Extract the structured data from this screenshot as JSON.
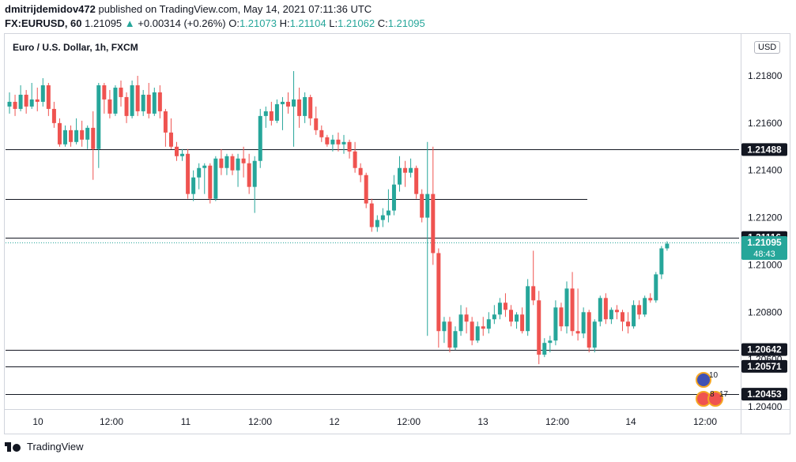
{
  "header": {
    "publisher": "dmitrijdemidov472",
    "published_text": "published on TradingView.com, May 14, 2021 07:11:36 UTC",
    "symbol": "FX:EURUSD, 60",
    "last": "1.21095",
    "change_icon": "up-triangle-icon",
    "change": "+0.00314 (+0.26%)",
    "open_label": "O:",
    "open": "1.21073",
    "high_label": "H:",
    "high": "1.21104",
    "low_label": "L:",
    "low": "1.21062",
    "close_label": "C:",
    "close": "1.21095"
  },
  "chart_title": "Euro / U.S. Dollar, 1h, FXCM",
  "currency_button": "USD",
  "footer": {
    "brand": "TradingView"
  },
  "colors": {
    "up": "#26a69a",
    "down": "#ef5350",
    "line": "#131722",
    "tag_bg": "#131722",
    "price_tag_bg": "#26a69a"
  },
  "chart_data": {
    "type": "candlestick",
    "title": "Euro / U.S. Dollar, 1h, FXCM",
    "x_tick_labels": [
      "10",
      "12:00",
      "11",
      "12:00",
      "12",
      "12:00",
      "13",
      "12:00",
      "14",
      "12:00"
    ],
    "y_tick_labels": [
      "1.21800",
      "1.21600",
      "1.21400",
      "1.21200",
      "1.21000",
      "1.20800",
      "1.20600",
      "1.20400"
    ],
    "ylim": [
      1.2035,
      1.2205
    ],
    "horizontal_levels": [
      {
        "value": 1.21488,
        "label": "1.21488"
      },
      {
        "value": 1.21116,
        "label": "1.21116"
      },
      {
        "value": 1.20642,
        "label": "1.20642"
      },
      {
        "value": 1.20571,
        "label": "1.20571"
      },
      {
        "value": 1.20453,
        "label": "1.20453"
      }
    ],
    "unlabeled_level": {
      "value": 1.2128
    },
    "current_price": {
      "value": 1.21095,
      "label": "1.21095",
      "countdown": "48:43"
    },
    "event_badges": [
      {
        "label": "10"
      },
      {
        "label": "8"
      },
      {
        "label": "17"
      }
    ],
    "grid": false,
    "candles": [
      {
        "o": 1.2167,
        "h": 1.2173,
        "l": 1.2164,
        "c": 1.2169
      },
      {
        "o": 1.2169,
        "h": 1.2172,
        "l": 1.2163,
        "c": 1.2166
      },
      {
        "o": 1.2166,
        "h": 1.2176,
        "l": 1.2165,
        "c": 1.2172
      },
      {
        "o": 1.2172,
        "h": 1.2174,
        "l": 1.2164,
        "c": 1.2167
      },
      {
        "o": 1.2167,
        "h": 1.2177,
        "l": 1.2166,
        "c": 1.217
      },
      {
        "o": 1.217,
        "h": 1.2175,
        "l": 1.2165,
        "c": 1.2169
      },
      {
        "o": 1.2169,
        "h": 1.2179,
        "l": 1.2167,
        "c": 1.2176
      },
      {
        "o": 1.2176,
        "h": 1.2177,
        "l": 1.2163,
        "c": 1.2166
      },
      {
        "o": 1.2166,
        "h": 1.2169,
        "l": 1.2158,
        "c": 1.216
      },
      {
        "o": 1.216,
        "h": 1.2162,
        "l": 1.215,
        "c": 1.2151
      },
      {
        "o": 1.2151,
        "h": 1.2159,
        "l": 1.215,
        "c": 1.2157
      },
      {
        "o": 1.2157,
        "h": 1.2159,
        "l": 1.215,
        "c": 1.2152
      },
      {
        "o": 1.2152,
        "h": 1.2162,
        "l": 1.2151,
        "c": 1.2157
      },
      {
        "o": 1.2157,
        "h": 1.2161,
        "l": 1.215,
        "c": 1.2153
      },
      {
        "o": 1.2153,
        "h": 1.2159,
        "l": 1.2149,
        "c": 1.2158
      },
      {
        "o": 1.2158,
        "h": 1.2165,
        "l": 1.2136,
        "c": 1.2149
      },
      {
        "o": 1.2149,
        "h": 1.2177,
        "l": 1.2141,
        "c": 1.2176
      },
      {
        "o": 1.2176,
        "h": 1.2177,
        "l": 1.2164,
        "c": 1.217
      },
      {
        "o": 1.217,
        "h": 1.2174,
        "l": 1.2162,
        "c": 1.2164
      },
      {
        "o": 1.2164,
        "h": 1.2176,
        "l": 1.2163,
        "c": 1.2175
      },
      {
        "o": 1.2175,
        "h": 1.2178,
        "l": 1.2167,
        "c": 1.2171
      },
      {
        "o": 1.2171,
        "h": 1.2173,
        "l": 1.216,
        "c": 1.2163
      },
      {
        "o": 1.2163,
        "h": 1.2178,
        "l": 1.2162,
        "c": 1.2176
      },
      {
        "o": 1.2176,
        "h": 1.218,
        "l": 1.2163,
        "c": 1.2165
      },
      {
        "o": 1.2165,
        "h": 1.2174,
        "l": 1.2163,
        "c": 1.2172
      },
      {
        "o": 1.2172,
        "h": 1.2177,
        "l": 1.2162,
        "c": 1.2164
      },
      {
        "o": 1.2164,
        "h": 1.2175,
        "l": 1.2163,
        "c": 1.2173
      },
      {
        "o": 1.2173,
        "h": 1.2176,
        "l": 1.2162,
        "c": 1.2165
      },
      {
        "o": 1.2165,
        "h": 1.2166,
        "l": 1.215,
        "c": 1.2156
      },
      {
        "o": 1.2156,
        "h": 1.2162,
        "l": 1.2149,
        "c": 1.215
      },
      {
        "o": 1.215,
        "h": 1.2152,
        "l": 1.2144,
        "c": 1.2146
      },
      {
        "o": 1.2146,
        "h": 1.2149,
        "l": 1.2144,
        "c": 1.2147
      },
      {
        "o": 1.2147,
        "h": 1.2149,
        "l": 1.2128,
        "c": 1.213
      },
      {
        "o": 1.213,
        "h": 1.214,
        "l": 1.2127,
        "c": 1.2137
      },
      {
        "o": 1.2137,
        "h": 1.2143,
        "l": 1.2132,
        "c": 1.2141
      },
      {
        "o": 1.2141,
        "h": 1.2143,
        "l": 1.213,
        "c": 1.2142
      },
      {
        "o": 1.2142,
        "h": 1.2143,
        "l": 1.2126,
        "c": 1.2128
      },
      {
        "o": 1.2128,
        "h": 1.2146,
        "l": 1.2127,
        "c": 1.2145
      },
      {
        "o": 1.2145,
        "h": 1.2149,
        "l": 1.2138,
        "c": 1.2141
      },
      {
        "o": 1.2141,
        "h": 1.2147,
        "l": 1.2138,
        "c": 1.2146
      },
      {
        "o": 1.2146,
        "h": 1.2147,
        "l": 1.2138,
        "c": 1.214
      },
      {
        "o": 1.214,
        "h": 1.2147,
        "l": 1.2133,
        "c": 1.2145
      },
      {
        "o": 1.2145,
        "h": 1.215,
        "l": 1.2137,
        "c": 1.2143
      },
      {
        "o": 1.2143,
        "h": 1.2147,
        "l": 1.213,
        "c": 1.2133
      },
      {
        "o": 1.2133,
        "h": 1.2146,
        "l": 1.2122,
        "c": 1.2144
      },
      {
        "o": 1.2144,
        "h": 1.2166,
        "l": 1.2141,
        "c": 1.2163
      },
      {
        "o": 1.2163,
        "h": 1.2167,
        "l": 1.2158,
        "c": 1.2165
      },
      {
        "o": 1.2165,
        "h": 1.2169,
        "l": 1.2159,
        "c": 1.2161
      },
      {
        "o": 1.2161,
        "h": 1.217,
        "l": 1.216,
        "c": 1.2168
      },
      {
        "o": 1.2168,
        "h": 1.2171,
        "l": 1.2157,
        "c": 1.2169
      },
      {
        "o": 1.2169,
        "h": 1.2173,
        "l": 1.2164,
        "c": 1.2167
      },
      {
        "o": 1.2167,
        "h": 1.2182,
        "l": 1.215,
        "c": 1.217
      },
      {
        "o": 1.217,
        "h": 1.2175,
        "l": 1.2158,
        "c": 1.2163
      },
      {
        "o": 1.2163,
        "h": 1.2173,
        "l": 1.216,
        "c": 1.2171
      },
      {
        "o": 1.2171,
        "h": 1.2172,
        "l": 1.2159,
        "c": 1.2162
      },
      {
        "o": 1.2162,
        "h": 1.2167,
        "l": 1.2155,
        "c": 1.2157
      },
      {
        "o": 1.2157,
        "h": 1.2159,
        "l": 1.2152,
        "c": 1.2154
      },
      {
        "o": 1.2154,
        "h": 1.2155,
        "l": 1.215,
        "c": 1.2151
      },
      {
        "o": 1.2151,
        "h": 1.2155,
        "l": 1.2148,
        "c": 1.2153
      },
      {
        "o": 1.2153,
        "h": 1.2156,
        "l": 1.2148,
        "c": 1.2151
      },
      {
        "o": 1.2151,
        "h": 1.2155,
        "l": 1.2147,
        "c": 1.2152
      },
      {
        "o": 1.2152,
        "h": 1.2153,
        "l": 1.2145,
        "c": 1.2148
      },
      {
        "o": 1.2148,
        "h": 1.2152,
        "l": 1.2139,
        "c": 1.2141
      },
      {
        "o": 1.2141,
        "h": 1.2143,
        "l": 1.2135,
        "c": 1.2138
      },
      {
        "o": 1.2138,
        "h": 1.2139,
        "l": 1.2124,
        "c": 1.2126
      },
      {
        "o": 1.2126,
        "h": 1.2128,
        "l": 1.2114,
        "c": 1.2116
      },
      {
        "o": 1.2116,
        "h": 1.2121,
        "l": 1.2114,
        "c": 1.2119
      },
      {
        "o": 1.2119,
        "h": 1.2124,
        "l": 1.2116,
        "c": 1.2121
      },
      {
        "o": 1.2121,
        "h": 1.2132,
        "l": 1.2118,
        "c": 1.2123
      },
      {
        "o": 1.2123,
        "h": 1.2138,
        "l": 1.2121,
        "c": 1.2134
      },
      {
        "o": 1.2134,
        "h": 1.2146,
        "l": 1.2131,
        "c": 1.2141
      },
      {
        "o": 1.2141,
        "h": 1.2144,
        "l": 1.2133,
        "c": 1.2139
      },
      {
        "o": 1.2139,
        "h": 1.2145,
        "l": 1.2137,
        "c": 1.2141
      },
      {
        "o": 1.2141,
        "h": 1.2142,
        "l": 1.2128,
        "c": 1.213
      },
      {
        "o": 1.213,
        "h": 1.2132,
        "l": 1.2118,
        "c": 1.212
      },
      {
        "o": 1.212,
        "h": 1.2152,
        "l": 1.207,
        "c": 1.213
      },
      {
        "o": 1.213,
        "h": 1.215,
        "l": 1.21,
        "c": 1.2105
      },
      {
        "o": 1.2105,
        "h": 1.2107,
        "l": 1.2065,
        "c": 1.2072
      },
      {
        "o": 1.2072,
        "h": 1.2078,
        "l": 1.2067,
        "c": 1.2076
      },
      {
        "o": 1.2076,
        "h": 1.2078,
        "l": 1.2063,
        "c": 1.2065
      },
      {
        "o": 1.2065,
        "h": 1.2074,
        "l": 1.2064,
        "c": 1.2072
      },
      {
        "o": 1.2072,
        "h": 1.2083,
        "l": 1.207,
        "c": 1.2079
      },
      {
        "o": 1.2079,
        "h": 1.2082,
        "l": 1.2071,
        "c": 1.2076
      },
      {
        "o": 1.2076,
        "h": 1.2078,
        "l": 1.2066,
        "c": 1.2068
      },
      {
        "o": 1.2068,
        "h": 1.2076,
        "l": 1.2067,
        "c": 1.2074
      },
      {
        "o": 1.2074,
        "h": 1.2078,
        "l": 1.207,
        "c": 1.2073
      },
      {
        "o": 1.2073,
        "h": 1.208,
        "l": 1.2071,
        "c": 1.2077
      },
      {
        "o": 1.2077,
        "h": 1.2083,
        "l": 1.2075,
        "c": 1.2079
      },
      {
        "o": 1.2079,
        "h": 1.2086,
        "l": 1.2077,
        "c": 1.2084
      },
      {
        "o": 1.2084,
        "h": 1.2088,
        "l": 1.2078,
        "c": 1.2081
      },
      {
        "o": 1.2081,
        "h": 1.2083,
        "l": 1.2074,
        "c": 1.2076
      },
      {
        "o": 1.2076,
        "h": 1.208,
        "l": 1.2073,
        "c": 1.2079
      },
      {
        "o": 1.2079,
        "h": 1.2082,
        "l": 1.2071,
        "c": 1.2072
      },
      {
        "o": 1.2072,
        "h": 1.2094,
        "l": 1.207,
        "c": 1.2091
      },
      {
        "o": 1.2091,
        "h": 1.2106,
        "l": 1.2083,
        "c": 1.2085
      },
      {
        "o": 1.2085,
        "h": 1.2089,
        "l": 1.2058,
        "c": 1.2062
      },
      {
        "o": 1.2062,
        "h": 1.2069,
        "l": 1.2061,
        "c": 1.2067
      },
      {
        "o": 1.2067,
        "h": 1.207,
        "l": 1.2063,
        "c": 1.2068
      },
      {
        "o": 1.2068,
        "h": 1.2085,
        "l": 1.2066,
        "c": 1.2082
      },
      {
        "o": 1.2082,
        "h": 1.2084,
        "l": 1.2072,
        "c": 1.2074
      },
      {
        "o": 1.2074,
        "h": 1.2093,
        "l": 1.2071,
        "c": 1.209
      },
      {
        "o": 1.209,
        "h": 1.2097,
        "l": 1.207,
        "c": 1.2072
      },
      {
        "o": 1.2072,
        "h": 1.209,
        "l": 1.2068,
        "c": 1.2071
      },
      {
        "o": 1.2071,
        "h": 1.2082,
        "l": 1.2069,
        "c": 1.208
      },
      {
        "o": 1.208,
        "h": 1.2081,
        "l": 1.2063,
        "c": 1.2065
      },
      {
        "o": 1.2065,
        "h": 1.2077,
        "l": 1.2063,
        "c": 1.2076
      },
      {
        "o": 1.2076,
        "h": 1.2087,
        "l": 1.2074,
        "c": 1.2086
      },
      {
        "o": 1.2086,
        "h": 1.2088,
        "l": 1.2075,
        "c": 1.2077
      },
      {
        "o": 1.2077,
        "h": 1.2082,
        "l": 1.2075,
        "c": 1.2081
      },
      {
        "o": 1.2081,
        "h": 1.2083,
        "l": 1.2077,
        "c": 1.208
      },
      {
        "o": 1.208,
        "h": 1.2081,
        "l": 1.2072,
        "c": 1.2076
      },
      {
        "o": 1.2076,
        "h": 1.208,
        "l": 1.2071,
        "c": 1.2074
      },
      {
        "o": 1.2074,
        "h": 1.2085,
        "l": 1.2073,
        "c": 1.2083
      },
      {
        "o": 1.2083,
        "h": 1.2085,
        "l": 1.2077,
        "c": 1.2079
      },
      {
        "o": 1.2079,
        "h": 1.2087,
        "l": 1.2078,
        "c": 1.2086
      },
      {
        "o": 1.2086,
        "h": 1.2088,
        "l": 1.2084,
        "c": 1.2085
      },
      {
        "o": 1.2085,
        "h": 1.2097,
        "l": 1.2084,
        "c": 1.2096
      },
      {
        "o": 1.2096,
        "h": 1.2108,
        "l": 1.2094,
        "c": 1.2107
      },
      {
        "o": 1.2107,
        "h": 1.211,
        "l": 1.2106,
        "c": 1.2109
      }
    ]
  }
}
